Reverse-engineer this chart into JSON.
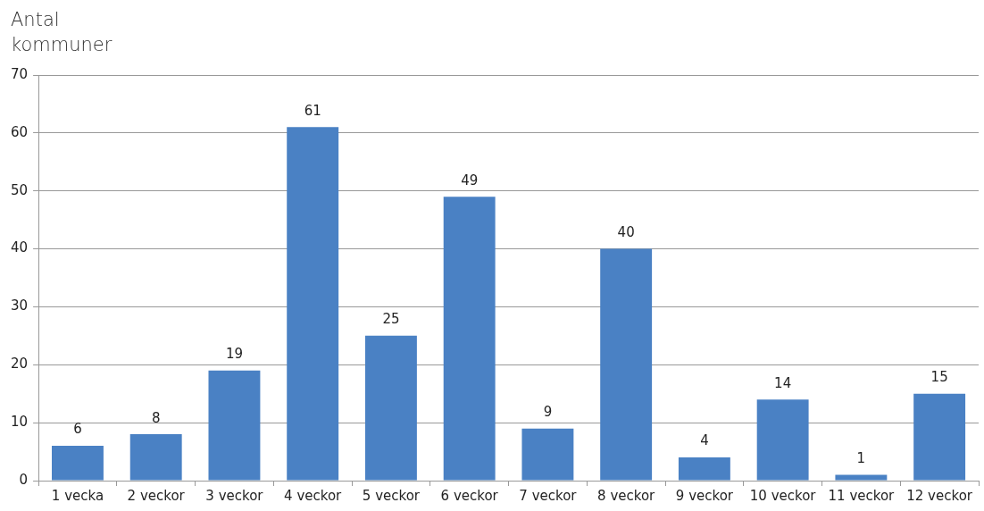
{
  "chart_data": {
    "type": "bar",
    "ylabel": "Antal kommuner",
    "categories": [
      "1 vecka",
      "2 veckor",
      "3 veckor",
      "4 veckor",
      "5 veckor",
      "6 veckor",
      "7 veckor",
      "8 veckor",
      "9 veckor",
      "10 veckor",
      "11 veckor",
      "12 veckor"
    ],
    "values": [
      6,
      8,
      19,
      61,
      25,
      49,
      9,
      40,
      4,
      14,
      1,
      15
    ],
    "color": "#4a81c4",
    "ylim": [
      0,
      70
    ],
    "yticks": [
      0,
      10,
      20,
      30,
      40,
      50,
      60,
      70
    ],
    "grid": "y",
    "data_labels": true,
    "legend": false
  }
}
